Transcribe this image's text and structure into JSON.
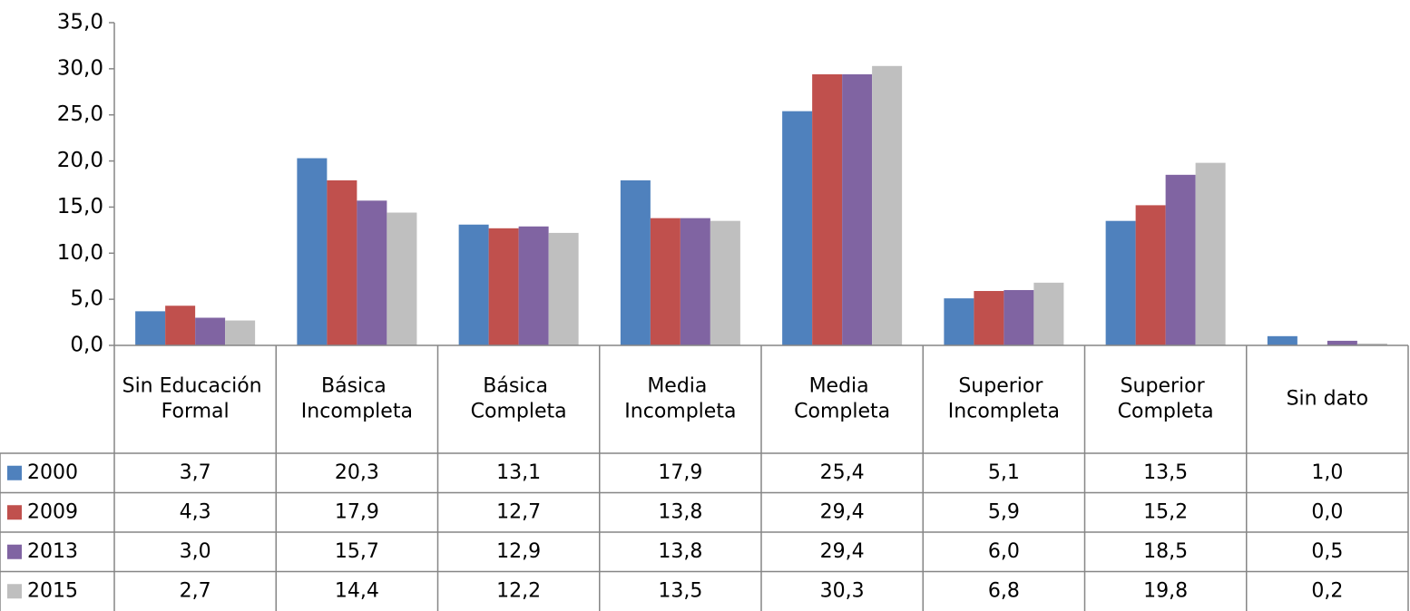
{
  "chart_data": {
    "type": "bar",
    "categories": [
      "Sin Educación Formal",
      "Básica Incompleta",
      "Básica Completa",
      "Media Incompleta",
      "Media Completa",
      "Superior Incompleta",
      "Superior Completa",
      "Sin dato"
    ],
    "series": [
      {
        "name": "2000",
        "color": "#4f81bd",
        "values": [
          3.7,
          20.3,
          13.1,
          17.9,
          25.4,
          5.1,
          13.5,
          1.0
        ],
        "value_labels": [
          "3,7",
          "20,3",
          "13,1",
          "17,9",
          "25,4",
          "5,1",
          "13,5",
          "1,0"
        ]
      },
      {
        "name": "2009",
        "color": "#c0504d",
        "values": [
          4.3,
          17.9,
          12.7,
          13.8,
          29.4,
          5.9,
          15.2,
          0.0
        ],
        "value_labels": [
          "4,3",
          "17,9",
          "12,7",
          "13,8",
          "29,4",
          "5,9",
          "15,2",
          "0,0"
        ]
      },
      {
        "name": "2013",
        "color": "#8064a2",
        "values": [
          3.0,
          15.7,
          12.9,
          13.8,
          29.4,
          6.0,
          18.5,
          0.5
        ],
        "value_labels": [
          "3,0",
          "15,7",
          "12,9",
          "13,8",
          "29,4",
          "6,0",
          "18,5",
          "0,5"
        ]
      },
      {
        "name": "2015",
        "color": "#bfbfbf",
        "values": [
          2.7,
          14.4,
          12.2,
          13.5,
          30.3,
          6.8,
          19.8,
          0.2
        ],
        "value_labels": [
          "2,7",
          "14,4",
          "12,2",
          "13,5",
          "30,3",
          "6,8",
          "19,8",
          "0,2"
        ]
      }
    ],
    "ylim": [
      0,
      35
    ],
    "yticks": [
      {
        "value": 0,
        "label": "0,0"
      },
      {
        "value": 5,
        "label": "5,0"
      },
      {
        "value": 10,
        "label": "10,0"
      },
      {
        "value": 15,
        "label": "15,0"
      },
      {
        "value": 20,
        "label": "20,0"
      },
      {
        "value": 25,
        "label": "25,0"
      },
      {
        "value": 30,
        "label": "30,0"
      },
      {
        "value": 35,
        "label": "35,0"
      }
    ]
  }
}
